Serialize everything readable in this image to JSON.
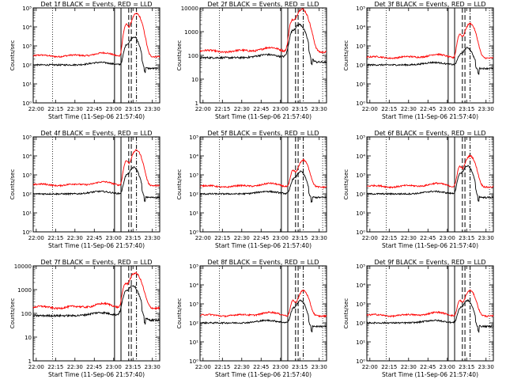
{
  "figure": {
    "colors": {
      "events": "#000000",
      "lld": "#ff0000",
      "axes": "#000000"
    }
  },
  "chart_data": [
    {
      "type": "line",
      "title": "Det 1f BLACK = Events, RED = LLD",
      "xlabel": "Start Time (11-Sep-06 21:57:40)",
      "ylabel": "Counts/sec",
      "xticks": [
        "22:00",
        "22:15",
        "22:30",
        "22:45",
        "23:00",
        "23:15",
        "23:30"
      ],
      "xlim_min": [
        0,
        98
      ],
      "ylog": true,
      "ylim": [
        1,
        100000
      ],
      "yticks": [
        "10⁰",
        "10¹",
        "10²",
        "10³",
        "10⁴",
        "10⁵"
      ],
      "events_base": 100,
      "lld_base": 300,
      "events_peak": 3000,
      "lld_peak": 50000,
      "flare_center_min": 78,
      "flare_width_min": 4,
      "dip_min": 84,
      "vlines": [
        {
          "t": 15,
          "style": "dotted"
        },
        {
          "t": 63,
          "style": "solid"
        },
        {
          "t": 68,
          "style": "solid"
        },
        {
          "t": 74,
          "style": "dashed"
        },
        {
          "t": 76,
          "style": "dashed"
        },
        {
          "t": 80,
          "style": "dashdot"
        },
        {
          "t": 95,
          "style": "dotted"
        }
      ],
      "legend": ""
    },
    {
      "type": "line",
      "title": "Det 2f BLACK = Events, RED = LLD",
      "xlabel": "Start Time (11-Sep-06 21:57:40)",
      "ylabel": "Counts/sec",
      "xticks": [
        "22:00",
        "22:15",
        "22:30",
        "22:45",
        "23:00",
        "23:15",
        "23:30"
      ],
      "xlim_min": [
        0,
        98
      ],
      "ylog": true,
      "ylim": [
        1,
        10000
      ],
      "yticks": [
        "1",
        "10",
        "100",
        "1000",
        "10000"
      ],
      "events_base": 80,
      "lld_base": 150,
      "events_peak": 2000,
      "lld_peak": 9000,
      "flare_center_min": 77,
      "flare_width_min": 5,
      "dip_min": 84,
      "vlines": [
        {
          "t": 15,
          "style": "dotted"
        },
        {
          "t": 63,
          "style": "solid"
        },
        {
          "t": 68,
          "style": "solid"
        },
        {
          "t": 74,
          "style": "dashed"
        },
        {
          "t": 76,
          "style": "dashed"
        },
        {
          "t": 80,
          "style": "dashdot"
        },
        {
          "t": 95,
          "style": "dotted"
        }
      ],
      "legend": ""
    },
    {
      "type": "line",
      "title": "Det 3f BLACK = Events, RED = LLD",
      "xlabel": "Start Time (11-Sep-06 21:57:40)",
      "ylabel": "Counts/sec",
      "xticks": [
        "22:00",
        "22:15",
        "22:30",
        "22:45",
        "23:00",
        "23:15",
        "23:30"
      ],
      "xlim_min": [
        0,
        98
      ],
      "ylog": true,
      "ylim": [
        1,
        100000
      ],
      "yticks": [
        "10⁰",
        "10¹",
        "10²",
        "10³",
        "10⁴",
        "10⁵"
      ],
      "events_base": 100,
      "lld_base": 250,
      "events_peak": 800,
      "lld_peak": 15000,
      "flare_center_min": 78,
      "flare_width_min": 4,
      "dip_min": 84,
      "vlines": [
        {
          "t": 15,
          "style": "dotted"
        },
        {
          "t": 63,
          "style": "solid"
        },
        {
          "t": 68,
          "style": "solid"
        },
        {
          "t": 74,
          "style": "dashed"
        },
        {
          "t": 76,
          "style": "dashed"
        },
        {
          "t": 80,
          "style": "dashdot"
        },
        {
          "t": 95,
          "style": "dotted"
        }
      ],
      "legend": ""
    },
    {
      "type": "line",
      "title": "Det 4f BLACK = Events, RED = LLD",
      "xlabel": "Start Time (11-Sep-06 21:57:40)",
      "ylabel": "Counts/sec",
      "xticks": [
        "22:00",
        "22:15",
        "22:30",
        "22:45",
        "23:00",
        "23:15",
        "23:30"
      ],
      "xlim_min": [
        0,
        98
      ],
      "ylog": true,
      "ylim": [
        1,
        100000
      ],
      "yticks": [
        "10⁰",
        "10¹",
        "10²",
        "10³",
        "10⁴",
        "10⁵"
      ],
      "events_base": 100,
      "lld_base": 300,
      "events_peak": 2500,
      "lld_peak": 20000,
      "flare_center_min": 78,
      "flare_width_min": 4,
      "dip_min": 84,
      "vlines": [
        {
          "t": 15,
          "style": "dotted"
        },
        {
          "t": 63,
          "style": "solid"
        },
        {
          "t": 68,
          "style": "solid"
        },
        {
          "t": 74,
          "style": "dashed"
        },
        {
          "t": 76,
          "style": "dashed"
        },
        {
          "t": 80,
          "style": "dashdot"
        },
        {
          "t": 95,
          "style": "dotted"
        }
      ],
      "legend": ""
    },
    {
      "type": "line",
      "title": "Det 5f BLACK = Events, RED = LLD",
      "xlabel": "Start Time (11-Sep-06 21:57:40)",
      "ylabel": "Counts/sec",
      "xticks": [
        "22:00",
        "22:15",
        "22:30",
        "22:45",
        "23:00",
        "23:15",
        "23:30"
      ],
      "xlim_min": [
        0,
        98
      ],
      "ylog": true,
      "ylim": [
        1,
        100000
      ],
      "yticks": [
        "10⁰",
        "10¹",
        "10²",
        "10³",
        "10⁴",
        "10⁵"
      ],
      "events_base": 100,
      "lld_base": 250,
      "events_peak": 1500,
      "lld_peak": 6000,
      "flare_center_min": 78,
      "flare_width_min": 4,
      "dip_min": 84,
      "vlines": [
        {
          "t": 15,
          "style": "dotted"
        },
        {
          "t": 63,
          "style": "solid"
        },
        {
          "t": 68,
          "style": "solid"
        },
        {
          "t": 74,
          "style": "dashed"
        },
        {
          "t": 76,
          "style": "dashed"
        },
        {
          "t": 80,
          "style": "dashdot"
        },
        {
          "t": 95,
          "style": "dotted"
        }
      ],
      "legend": ""
    },
    {
      "type": "line",
      "title": "Det 6f BLACK = Events, RED = LLD",
      "xlabel": "Start Time (11-Sep-06 21:57:40)",
      "ylabel": "Counts/sec",
      "xticks": [
        "22:00",
        "22:15",
        "22:30",
        "22:45",
        "23:00",
        "23:15",
        "23:30"
      ],
      "xlim_min": [
        0,
        98
      ],
      "ylog": true,
      "ylim": [
        1,
        100000
      ],
      "yticks": [
        "10⁰",
        "10¹",
        "10²",
        "10³",
        "10⁴",
        "10⁵"
      ],
      "events_base": 100,
      "lld_base": 250,
      "events_peak": 3000,
      "lld_peak": 10000,
      "flare_center_min": 78,
      "flare_width_min": 4,
      "dip_min": 84,
      "vlines": [
        {
          "t": 15,
          "style": "dotted"
        },
        {
          "t": 63,
          "style": "solid"
        },
        {
          "t": 68,
          "style": "solid"
        },
        {
          "t": 74,
          "style": "dashed"
        },
        {
          "t": 76,
          "style": "dashed"
        },
        {
          "t": 80,
          "style": "dashdot"
        },
        {
          "t": 95,
          "style": "dotted"
        }
      ],
      "legend": ""
    },
    {
      "type": "line",
      "title": "Det 7f BLACK = Events, RED = LLD",
      "xlabel": "Start Time (11-Sep-06 21:57:40)",
      "ylabel": "Counts/sec",
      "xticks": [
        "22:00",
        "22:15",
        "22:30",
        "22:45",
        "23:00",
        "23:15",
        "23:30"
      ],
      "xlim_min": [
        0,
        98
      ],
      "ylog": true,
      "ylim": [
        1,
        10000
      ],
      "yticks": [
        "1",
        "10",
        "100",
        "1000",
        "10000"
      ],
      "events_base": 80,
      "lld_base": 180,
      "events_peak": 1500,
      "lld_peak": 5000,
      "flare_center_min": 77,
      "flare_width_min": 5,
      "dip_min": 84,
      "vlines": [
        {
          "t": 15,
          "style": "dotted"
        },
        {
          "t": 63,
          "style": "solid"
        },
        {
          "t": 68,
          "style": "solid"
        },
        {
          "t": 74,
          "style": "dashed"
        },
        {
          "t": 76,
          "style": "dashed"
        },
        {
          "t": 80,
          "style": "dashdot"
        },
        {
          "t": 95,
          "style": "dotted"
        }
      ],
      "legend": ""
    },
    {
      "type": "line",
      "title": "Det 8f BLACK = Events, RED = LLD",
      "xlabel": "Start Time (11-Sep-06 21:57:40)",
      "ylabel": "Counts/sec",
      "xticks": [
        "22:00",
        "22:15",
        "22:30",
        "22:45",
        "23:00",
        "23:15",
        "23:30"
      ],
      "xlim_min": [
        0,
        98
      ],
      "ylog": true,
      "ylim": [
        1,
        100000
      ],
      "yticks": [
        "10⁰",
        "10¹",
        "10²",
        "10³",
        "10⁴",
        "10⁵"
      ],
      "events_base": 100,
      "lld_base": 250,
      "events_peak": 1500,
      "lld_peak": 5000,
      "flare_center_min": 78,
      "flare_width_min": 4,
      "dip_min": 84,
      "vlines": [
        {
          "t": 15,
          "style": "dotted"
        },
        {
          "t": 63,
          "style": "solid"
        },
        {
          "t": 68,
          "style": "solid"
        },
        {
          "t": 74,
          "style": "dashed"
        },
        {
          "t": 76,
          "style": "dashed"
        },
        {
          "t": 80,
          "style": "dashdot"
        },
        {
          "t": 95,
          "style": "dotted"
        }
      ],
      "legend": ""
    },
    {
      "type": "line",
      "title": "Det 9f BLACK = Events, RED = LLD",
      "xlabel": "Start Time (11-Sep-06 21:57:40)",
      "ylabel": "Counts/sec",
      "xticks": [
        "22:00",
        "22:15",
        "22:30",
        "22:45",
        "23:00",
        "23:15",
        "23:30"
      ],
      "xlim_min": [
        0,
        98
      ],
      "ylog": true,
      "ylim": [
        1,
        100000
      ],
      "yticks": [
        "10⁰",
        "10¹",
        "10²",
        "10³",
        "10⁴",
        "10⁵"
      ],
      "events_base": 100,
      "lld_base": 250,
      "events_peak": 1500,
      "lld_peak": 5000,
      "flare_center_min": 78,
      "flare_width_min": 4,
      "dip_min": 84,
      "vlines": [
        {
          "t": 15,
          "style": "dotted"
        },
        {
          "t": 63,
          "style": "solid"
        },
        {
          "t": 68,
          "style": "solid"
        },
        {
          "t": 74,
          "style": "dashed"
        },
        {
          "t": 76,
          "style": "dashed"
        },
        {
          "t": 80,
          "style": "dashdot"
        },
        {
          "t": 95,
          "style": "dotted"
        }
      ],
      "legend": ""
    }
  ]
}
